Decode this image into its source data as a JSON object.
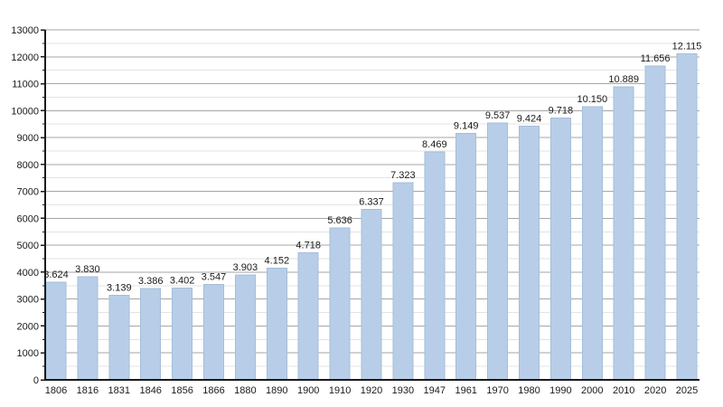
{
  "chart_data": {
    "type": "bar",
    "title": "",
    "xlabel": "",
    "ylabel": "",
    "categories": [
      "1806",
      "1816",
      "1831",
      "1846",
      "1856",
      "1866",
      "1880",
      "1890",
      "1900",
      "1910",
      "1920",
      "1930",
      "1947",
      "1961",
      "1970",
      "1980",
      "1990",
      "2000",
      "2010",
      "2020",
      "2025"
    ],
    "values": [
      3624,
      3830,
      3139,
      3386,
      3402,
      3547,
      3903,
      4152,
      4718,
      5636,
      6337,
      7323,
      8469,
      9149,
      9537,
      9424,
      9718,
      10150,
      10889,
      11656,
      12115
    ],
    "value_labels": [
      "3.624",
      "3.830",
      "3.139",
      "3.386",
      "3.402",
      "3.547",
      "3.903",
      "4.152",
      "4.718",
      "5.636",
      "6.337",
      "7.323",
      "8.469",
      "9.149",
      "9.537",
      "9.424",
      "9.718",
      "10.150",
      "10.889",
      "11.656",
      "12.115"
    ],
    "ylim": [
      0,
      13000
    ],
    "y_major_step": 1000,
    "y_minor_step": 500,
    "grid": true,
    "legend": false,
    "colors": {
      "background": "#FFFFFF",
      "bar_fill": "#B8CEE8",
      "bar_edge": "#A5BDD7",
      "major_grid": "#A6A6A6",
      "minor_grid": "#E3E3E3",
      "axis": "#1A1A1A",
      "text": "#1A1A1A"
    }
  }
}
